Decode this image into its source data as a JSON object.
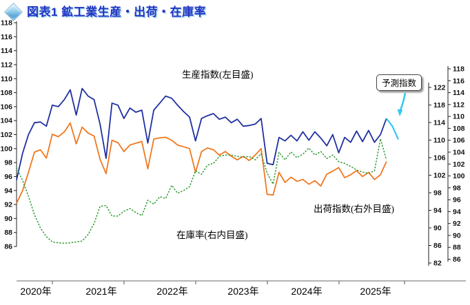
{
  "header": {
    "icon": "diamond-bullet-icon",
    "title": "図表1 鉱工業生産・出荷・在庫率"
  },
  "annotations": {
    "production_label": "生産指数(左目盛)",
    "shipment_label": "出荷指数(右外目盛)",
    "inventory_label": "在庫率(右内目盛)",
    "forecast_label": "予測指数"
  },
  "chart_data": {
    "type": "line",
    "frequency": "monthly",
    "start_month": "2020-07",
    "x_year_labels": [
      "2020年",
      "2021年",
      "2022年",
      "2023年",
      "2024年",
      "2025年"
    ],
    "grid": "off",
    "axes": {
      "left": {
        "min": 86,
        "max": 118,
        "step": 2,
        "used_by": "生産指数(左目盛)"
      },
      "right_inner": {
        "min": 82,
        "max": 122,
        "step": 4,
        "used_by": "在庫率(右内目盛)"
      },
      "right_outer": {
        "min": 86,
        "max": 118,
        "step": 2,
        "used_by": "出荷指数(右外目盛)"
      }
    },
    "series": [
      {
        "name": "生産指数(左目盛)",
        "axis": "left",
        "color": "#1e2f9f",
        "style": "solid",
        "values": [
          95.5,
          99.3,
          102.0,
          103.7,
          103.8,
          103.2,
          106.2,
          106.0,
          107.0,
          108.4,
          104.8,
          108.6,
          107.5,
          107.0,
          103.5,
          98.6,
          106.5,
          106.2,
          104.3,
          105.8,
          105.2,
          105.5,
          100.8,
          105.5,
          106.5,
          107.5,
          107.2,
          106.2,
          105.3,
          104.5,
          101.1,
          104.3,
          104.7,
          105.0,
          104.2,
          104.5,
          103.7,
          104.2,
          103.2,
          103.3,
          103.5,
          104.3,
          97.9,
          97.7,
          101.6,
          101.1,
          101.9,
          101.1,
          102.4,
          101.2,
          102.4,
          101.5,
          100.4,
          102.0,
          99.4,
          101.6,
          100.9,
          102.5,
          101.0,
          102.6,
          100.9,
          102.0,
          104.3
        ]
      },
      {
        "name": "出荷指数(右外目盛)",
        "axis": "right_outer",
        "color": "#f0781e",
        "style": "solid",
        "values": [
          95.4,
          97.5,
          100.6,
          104.0,
          104.4,
          103.0,
          107.0,
          106.6,
          107.4,
          108.9,
          105.4,
          108.2,
          107.2,
          106.7,
          102.8,
          100.4,
          106.0,
          105.6,
          104.1,
          105.2,
          105.5,
          105.8,
          101.2,
          106.2,
          106.4,
          106.5,
          106.0,
          105.2,
          104.9,
          104.6,
          100.6,
          104.1,
          104.7,
          104.4,
          103.5,
          104.1,
          103.3,
          102.7,
          103.3,
          102.6,
          103.5,
          104.6,
          96.9,
          96.8,
          100.6,
          98.9,
          99.8,
          99.1,
          99.4,
          98.6,
          99.2,
          98.3,
          100.3,
          100.8,
          101.4,
          99.7,
          100.2,
          100.9,
          99.9,
          100.6,
          99.4,
          100.2,
          102.4
        ]
      },
      {
        "name": "在庫率(右内目盛)",
        "axis": "right_inner",
        "color": "#2f9b33",
        "style": "dotted",
        "values": [
          103.8,
          100.8,
          97.2,
          93.0,
          90.0,
          88.0,
          86.8,
          86.6,
          86.5,
          86.6,
          86.8,
          87.0,
          88.5,
          91.0,
          94.9,
          95.1,
          92.7,
          92.7,
          93.8,
          94.4,
          93.5,
          92.8,
          96.3,
          95.4,
          97.1,
          96.7,
          99.7,
          97.9,
          98.5,
          99.4,
          103.0,
          102.2,
          104.3,
          104.7,
          106.3,
          106.6,
          106.6,
          106.3,
          106.1,
          106.3,
          105.5,
          106.9,
          102.5,
          100.0,
          107.2,
          105.5,
          107.3,
          106.0,
          106.8,
          108.2,
          106.6,
          107.4,
          105.8,
          106.6,
          105.1,
          104.7,
          104.0,
          103.2,
          102.7,
          102.4,
          103.0,
          110.3,
          105.5
        ]
      }
    ],
    "forecast": {
      "name": "予測指数",
      "applies_to": "生産指数(左目盛)",
      "axis": "left",
      "color": "#35c8f0",
      "values": [
        103.2,
        101.3
      ]
    }
  }
}
